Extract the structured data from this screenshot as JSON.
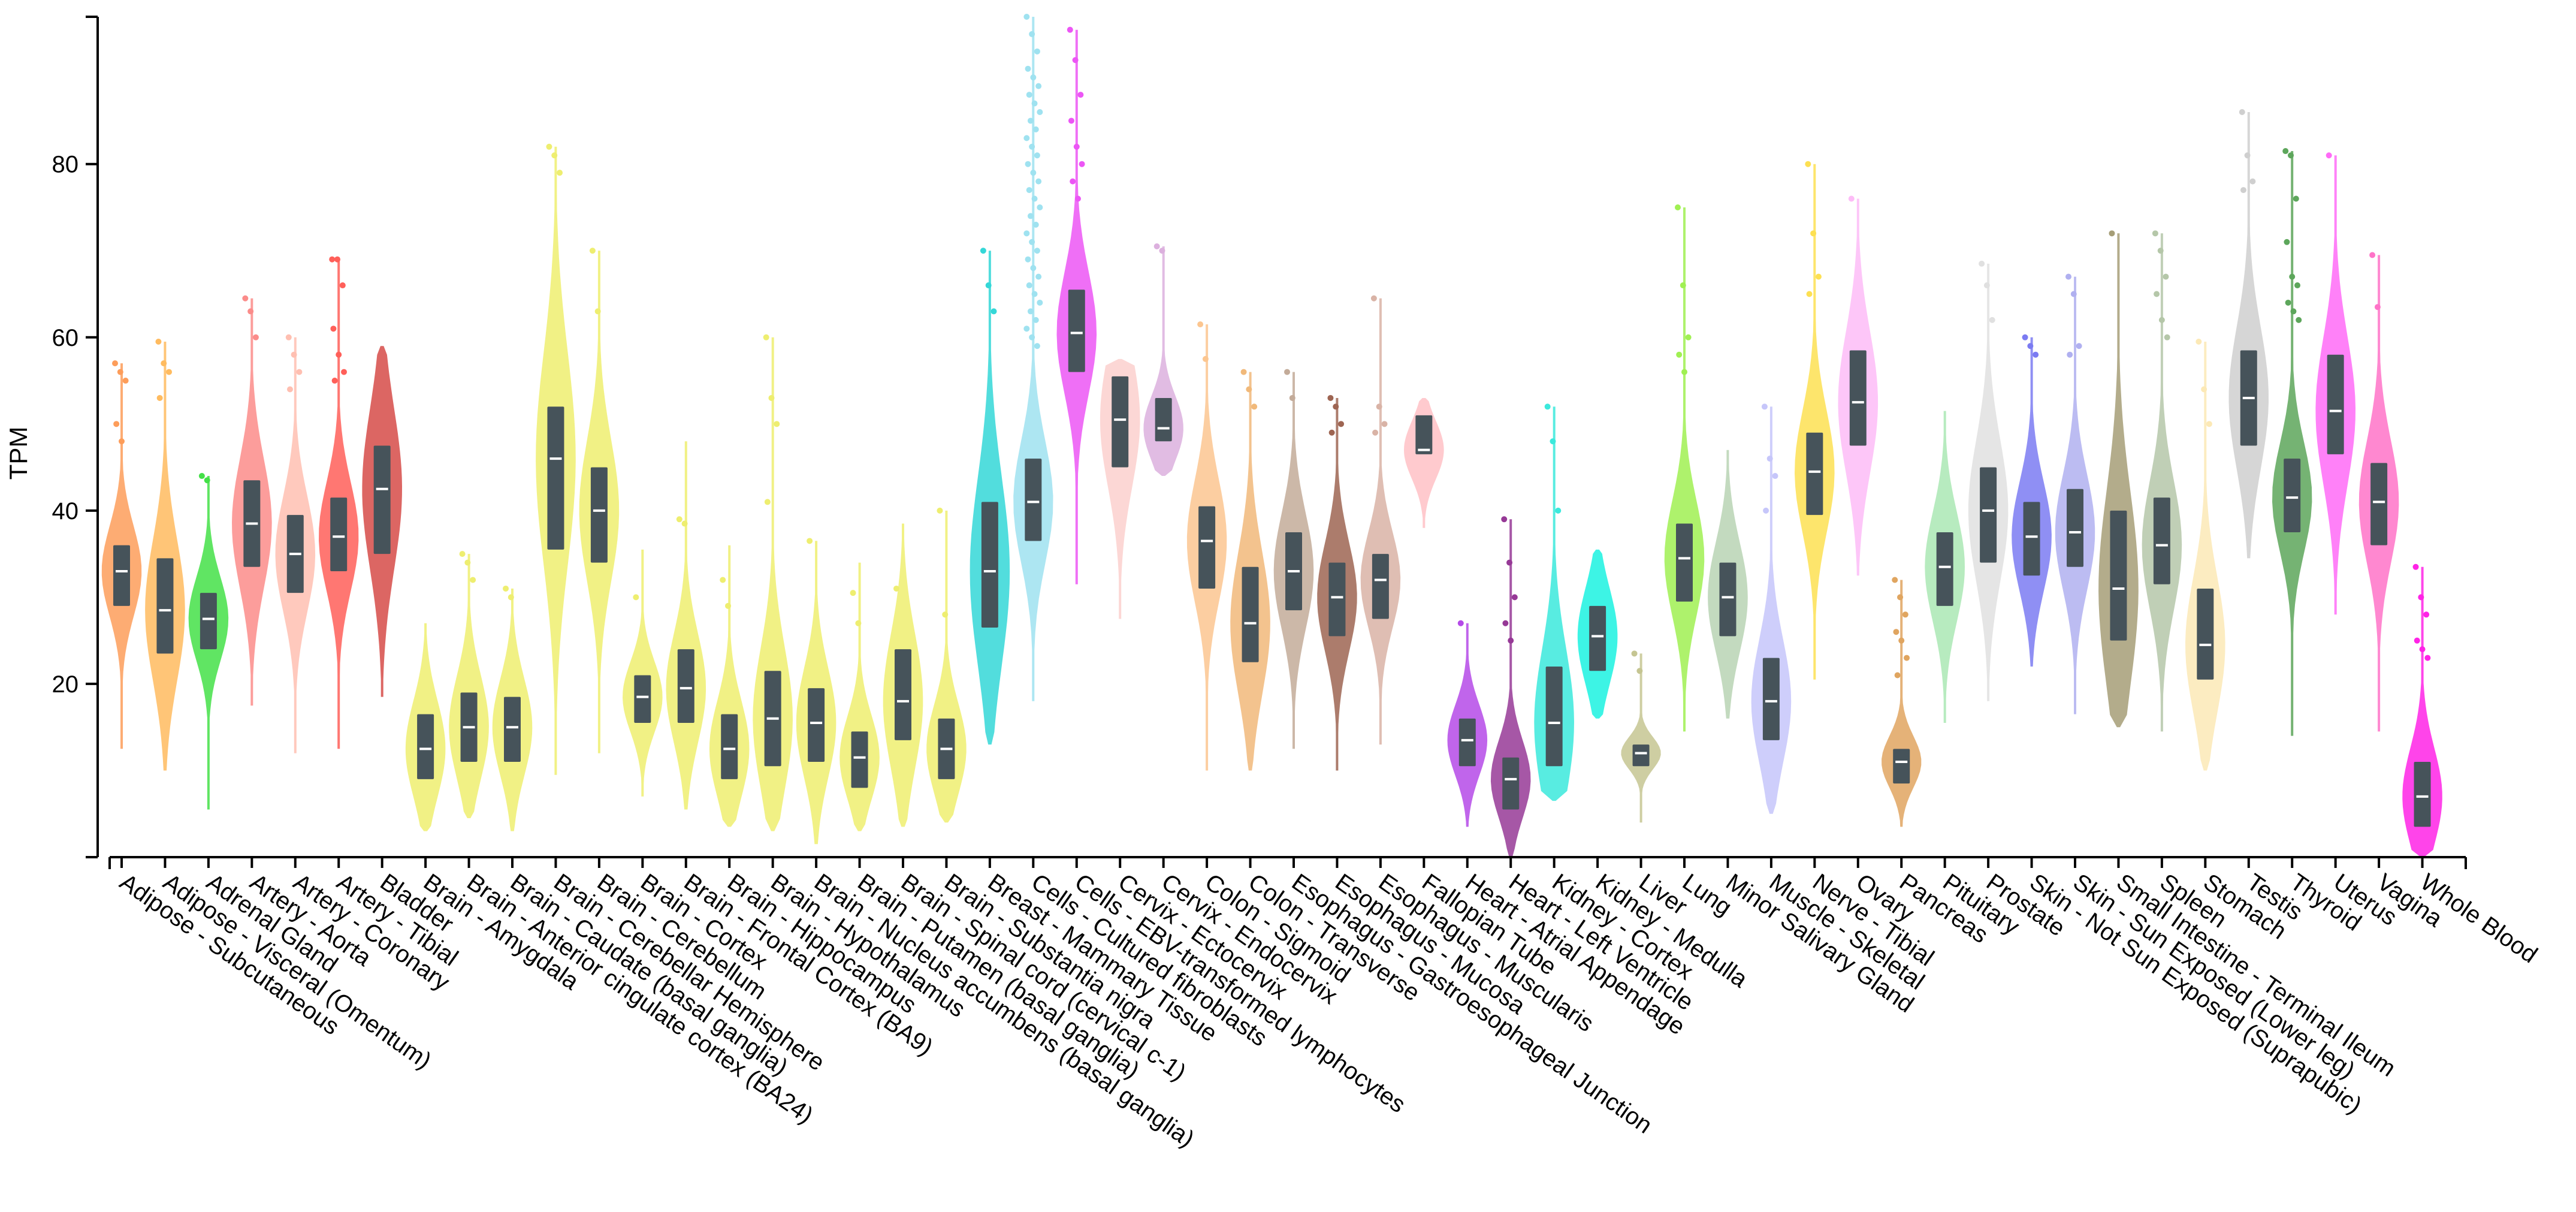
{
  "chart_data": {
    "type": "violin",
    "title": "",
    "xlabel": "",
    "ylabel": "TPM",
    "ylim": [
      0,
      97
    ],
    "yticks": [
      20,
      40,
      60,
      80
    ],
    "colors": [
      "#fd9d5a",
      "#ffbb5f",
      "#44e048",
      "#fb8c8a",
      "#ffbfb1",
      "#ff5f59",
      "#d64b48",
      "#eeee70",
      "#eeee70",
      "#eeee70",
      "#eeee70",
      "#eeee70",
      "#eeee70",
      "#eeee70",
      "#eeee70",
      "#eeee70",
      "#eeee70",
      "#eeee70",
      "#eeee70",
      "#eeee70",
      "#34d7d7",
      "#9fe2f0",
      "#ec56f5",
      "#fcd0ce",
      "#dcb0de",
      "#fcc690",
      "#f1b97a",
      "#c3ab99",
      "#9e6552",
      "#d9b3a6",
      "#ffc1c5",
      "#b54ae8",
      "#963996",
      "#3be9dc",
      "#1bf2e0",
      "#c5c592",
      "#a0f052",
      "#b8d3b4",
      "#c6c6fa",
      "#fde052",
      "#fdbcf7",
      "#e0a560",
      "#aae8b4",
      "#e0e0e0",
      "#7b7bf2",
      "#b0b0f0",
      "#a69e77",
      "#b5c7a9",
      "#fce9b6",
      "#cfcfcf",
      "#5da65b",
      "#ff6bf7",
      "#ff73c8",
      "#ff23e6"
    ],
    "categories": [
      "Adipose - Subcutaneous",
      "Adipose - Visceral (Omentum)",
      "Adrenal Gland",
      "Artery - Aorta",
      "Artery - Coronary",
      "Artery - Tibial",
      "Bladder",
      "Brain - Amygdala",
      "Brain - Anterior cingulate cortex (BA24)",
      "Brain - Caudate (basal ganglia)",
      "Brain - Cerebellar Hemisphere",
      "Brain - Cerebellum",
      "Brain - Cortex",
      "Brain - Frontal Cortex (BA9)",
      "Brain - Hippocampus",
      "Brain - Hypothalamus",
      "Brain - Nucleus accumbens (basal ganglia)",
      "Brain - Putamen (basal ganglia)",
      "Brain - Spinal cord (cervical c-1)",
      "Brain - Substantia nigra",
      "Breast - Mammary Tissue",
      "Cells - Cultured fibroblasts",
      "Cells - EBV-transformed lymphocytes",
      "Cervix - Ectocervix",
      "Cervix - Endocervix",
      "Colon - Sigmoid",
      "Colon - Transverse",
      "Esophagus - Gastroesophageal Junction",
      "Esophagus - Mucosa",
      "Esophagus - Muscularis",
      "Fallopian Tube",
      "Heart - Atrial Appendage",
      "Heart - Left Ventricle",
      "Kidney - Cortex",
      "Kidney - Medulla",
      "Liver",
      "Lung",
      "Minor Salivary Gland",
      "Muscle - Skeletal",
      "Nerve - Tibial",
      "Ovary",
      "Pancreas",
      "Pituitary",
      "Prostate",
      "Skin - Not Sun Exposed (Suprapubic)",
      "Skin - Sun Exposed (Lower leg)",
      "Small Intestine - Terminal Ileum",
      "Spleen",
      "Stomach",
      "Testis",
      "Thyroid",
      "Uterus",
      "Vagina",
      "Whole Blood"
    ],
    "series": [
      {
        "name": "Adipose - Subcutaneous",
        "min": 12.5,
        "q1": 29,
        "median": 33,
        "q3": 36,
        "max": 57,
        "outliers": [
          57,
          56,
          55,
          50,
          48
        ]
      },
      {
        "name": "Adipose - Visceral (Omentum)",
        "min": 10,
        "q1": 23.5,
        "median": 28.5,
        "q3": 34.5,
        "max": 59.5,
        "outliers": [
          59.5,
          57,
          56,
          53
        ]
      },
      {
        "name": "Adrenal Gland",
        "min": 5.5,
        "q1": 24,
        "median": 27.5,
        "q3": 30.5,
        "max": 44,
        "outliers": [
          44,
          43.5
        ]
      },
      {
        "name": "Artery - Aorta",
        "min": 17.5,
        "q1": 33.5,
        "median": 38.5,
        "q3": 43.5,
        "max": 64.5,
        "outliers": [
          64.5,
          63,
          60
        ]
      },
      {
        "name": "Artery - Coronary",
        "min": 12,
        "q1": 30.5,
        "median": 35,
        "q3": 39.5,
        "max": 60,
        "outliers": [
          60,
          58,
          56,
          54
        ]
      },
      {
        "name": "Artery - Tibial",
        "min": 12.5,
        "q1": 33,
        "median": 37,
        "q3": 41.5,
        "max": 69,
        "outliers": [
          69,
          69,
          66,
          61,
          58,
          56,
          55
        ]
      },
      {
        "name": "Bladder",
        "min": 18.5,
        "q1": 35,
        "median": 42.5,
        "q3": 47.5,
        "max": 59,
        "outliers": []
      },
      {
        "name": "Brain - Amygdala",
        "min": 3,
        "q1": 9,
        "median": 12.5,
        "q3": 16.5,
        "max": 27,
        "outliers": []
      },
      {
        "name": "Brain - Anterior cingulate cortex (BA24)",
        "min": 4.5,
        "q1": 11,
        "median": 15,
        "q3": 19,
        "max": 35,
        "outliers": [
          35,
          34,
          32
        ]
      },
      {
        "name": "Brain - Caudate (basal ganglia)",
        "min": 3,
        "q1": 11,
        "median": 15,
        "q3": 18.5,
        "max": 31,
        "outliers": [
          31,
          30
        ]
      },
      {
        "name": "Brain - Cerebellar Hemisphere",
        "min": 9.5,
        "q1": 35.5,
        "median": 46,
        "q3": 52,
        "max": 82,
        "outliers": [
          82,
          81,
          79
        ]
      },
      {
        "name": "Brain - Cerebellum",
        "min": 12,
        "q1": 34,
        "median": 40,
        "q3": 45,
        "max": 70,
        "outliers": [
          70,
          63
        ]
      },
      {
        "name": "Brain - Cortex",
        "min": 7,
        "q1": 15.5,
        "median": 18.5,
        "q3": 21,
        "max": 35.5,
        "outliers": [
          30
        ]
      },
      {
        "name": "Brain - Frontal Cortex (BA9)",
        "min": 5.5,
        "q1": 15.5,
        "median": 19.5,
        "q3": 24,
        "max": 48,
        "outliers": [
          39,
          38.5
        ]
      },
      {
        "name": "Brain - Hippocampus",
        "min": 3.5,
        "q1": 9,
        "median": 12.5,
        "q3": 16.5,
        "max": 36,
        "outliers": [
          32,
          29
        ]
      },
      {
        "name": "Brain - Hypothalamus",
        "min": 3,
        "q1": 10.5,
        "median": 16,
        "q3": 21.5,
        "max": 60,
        "outliers": [
          60,
          53,
          50,
          41
        ]
      },
      {
        "name": "Brain - Nucleus accumbens (basal ganglia)",
        "min": 1.5,
        "q1": 11,
        "median": 15.5,
        "q3": 19.5,
        "max": 36.5,
        "outliers": [
          36.5
        ]
      },
      {
        "name": "Brain - Putamen (basal ganglia)",
        "min": 3,
        "q1": 8,
        "median": 11.5,
        "q3": 14.5,
        "max": 34,
        "outliers": [
          30.5,
          27
        ]
      },
      {
        "name": "Brain - Spinal cord (cervical c-1)",
        "min": 3.5,
        "q1": 13.5,
        "median": 18,
        "q3": 24,
        "max": 38.5,
        "outliers": [
          31
        ]
      },
      {
        "name": "Brain - Substantia nigra",
        "min": 4,
        "q1": 9,
        "median": 12.5,
        "q3": 16,
        "max": 40,
        "outliers": [
          40,
          28
        ]
      },
      {
        "name": "Breast - Mammary Tissue",
        "min": 13,
        "q1": 26.5,
        "median": 33,
        "q3": 41,
        "max": 70,
        "outliers": [
          70,
          66,
          63
        ]
      },
      {
        "name": "Cells - Cultured fibroblasts",
        "min": 18,
        "q1": 36.5,
        "median": 41,
        "q3": 46,
        "max": 97,
        "outliers": [
          97,
          95,
          93,
          91,
          90,
          89,
          88,
          87,
          86,
          85,
          84,
          83,
          82,
          81,
          80,
          79,
          78,
          77,
          76,
          75,
          74,
          73,
          72,
          71,
          70,
          69,
          68,
          67,
          66,
          65,
          64,
          63,
          62,
          61,
          60,
          59
        ]
      },
      {
        "name": "Cells - EBV-transformed lymphocytes",
        "min": 31.5,
        "q1": 56,
        "median": 60.5,
        "q3": 65.5,
        "max": 95.5,
        "outliers": [
          95.5,
          92,
          88,
          85,
          82,
          80,
          78,
          76
        ]
      },
      {
        "name": "Cervix - Ectocervix",
        "min": 27.5,
        "q1": 45,
        "median": 50.5,
        "q3": 55.5,
        "max": 57.5,
        "outliers": []
      },
      {
        "name": "Cervix - Endocervix",
        "min": 44,
        "q1": 48,
        "median": 49.5,
        "q3": 53,
        "max": 70.5,
        "outliers": [
          70.5,
          70
        ]
      },
      {
        "name": "Colon - Sigmoid",
        "min": 10,
        "q1": 31,
        "median": 36.5,
        "q3": 40.5,
        "max": 61.5,
        "outliers": [
          61.5,
          57.5
        ]
      },
      {
        "name": "Colon - Transverse",
        "min": 10,
        "q1": 22.5,
        "median": 27,
        "q3": 33.5,
        "max": 56,
        "outliers": [
          56,
          54,
          52
        ]
      },
      {
        "name": "Esophagus - Gastroesophageal Junction",
        "min": 12.5,
        "q1": 28.5,
        "median": 33,
        "q3": 37.5,
        "max": 56,
        "outliers": [
          56,
          53
        ]
      },
      {
        "name": "Esophagus - Mucosa",
        "min": 10,
        "q1": 25.5,
        "median": 30,
        "q3": 34,
        "max": 53,
        "outliers": [
          53,
          52,
          50,
          49
        ]
      },
      {
        "name": "Esophagus - Muscularis",
        "min": 13,
        "q1": 27.5,
        "median": 32,
        "q3": 35,
        "max": 64.5,
        "outliers": [
          64.5,
          52,
          50,
          49
        ]
      },
      {
        "name": "Fallopian Tube",
        "min": 38,
        "q1": 46.5,
        "median": 47,
        "q3": 51,
        "max": 53,
        "outliers": []
      },
      {
        "name": "Heart - Atrial Appendage",
        "min": 3.5,
        "q1": 10.5,
        "median": 13.5,
        "q3": 16,
        "max": 27,
        "outliers": [
          27
        ]
      },
      {
        "name": "Heart - Left Ventricle",
        "min": 0,
        "q1": 5.5,
        "median": 9,
        "q3": 11.5,
        "max": 39,
        "outliers": [
          39,
          34,
          30,
          27,
          25
        ]
      },
      {
        "name": "Kidney - Cortex",
        "min": 6.5,
        "q1": 10.5,
        "median": 15.5,
        "q3": 22,
        "max": 52,
        "outliers": [
          52,
          48,
          40
        ]
      },
      {
        "name": "Kidney - Medulla",
        "min": 16,
        "q1": 21.5,
        "median": 25.5,
        "q3": 29,
        "max": 35.5,
        "outliers": []
      },
      {
        "name": "Liver",
        "min": 4,
        "q1": 10.5,
        "median": 12,
        "q3": 13,
        "max": 23.5,
        "outliers": [
          23.5,
          21.5
        ]
      },
      {
        "name": "Lung",
        "min": 14.5,
        "q1": 29.5,
        "median": 34.5,
        "q3": 38.5,
        "max": 75,
        "outliers": [
          75,
          66,
          60,
          58,
          56
        ]
      },
      {
        "name": "Minor Salivary Gland",
        "min": 16,
        "q1": 25.5,
        "median": 30,
        "q3": 34,
        "max": 47,
        "outliers": []
      },
      {
        "name": "Muscle - Skeletal",
        "min": 5,
        "q1": 13.5,
        "median": 18,
        "q3": 23,
        "max": 52,
        "outliers": [
          52,
          46,
          44,
          40
        ]
      },
      {
        "name": "Nerve - Tibial",
        "min": 20.5,
        "q1": 39.5,
        "median": 44.5,
        "q3": 49,
        "max": 80,
        "outliers": [
          80,
          72,
          67,
          65
        ]
      },
      {
        "name": "Ovary",
        "min": 32.5,
        "q1": 47.5,
        "median": 52.5,
        "q3": 58.5,
        "max": 76,
        "outliers": [
          76
        ]
      },
      {
        "name": "Pancreas",
        "min": 3.5,
        "q1": 8.5,
        "median": 11,
        "q3": 12.5,
        "max": 32,
        "outliers": [
          32,
          30,
          28,
          26,
          25,
          23,
          21
        ]
      },
      {
        "name": "Pituitary",
        "min": 15.5,
        "q1": 29,
        "median": 33.5,
        "q3": 37.5,
        "max": 51.5,
        "outliers": []
      },
      {
        "name": "Prostate",
        "min": 18,
        "q1": 34,
        "median": 40,
        "q3": 45,
        "max": 68.5,
        "outliers": [
          68.5,
          66,
          62
        ]
      },
      {
        "name": "Skin - Not Sun Exposed (Suprapubic)",
        "min": 22,
        "q1": 32.5,
        "median": 37,
        "q3": 41,
        "max": 60,
        "outliers": [
          60,
          59,
          58
        ]
      },
      {
        "name": "Skin - Sun Exposed (Lower leg)",
        "min": 16.5,
        "q1": 33.5,
        "median": 37.5,
        "q3": 42.5,
        "max": 67,
        "outliers": [
          67,
          65,
          59,
          58
        ]
      },
      {
        "name": "Small Intestine - Terminal Ileum",
        "min": 15,
        "q1": 25,
        "median": 31,
        "q3": 40,
        "max": 72,
        "outliers": [
          72
        ]
      },
      {
        "name": "Spleen",
        "min": 14.5,
        "q1": 31.5,
        "median": 36,
        "q3": 41.5,
        "max": 72,
        "outliers": [
          72,
          70,
          67,
          65,
          62,
          60
        ]
      },
      {
        "name": "Stomach",
        "min": 10,
        "q1": 20.5,
        "median": 24.5,
        "q3": 31,
        "max": 59.5,
        "outliers": [
          59.5,
          54,
          50
        ]
      },
      {
        "name": "Testis",
        "min": 34.5,
        "q1": 47.5,
        "median": 53,
        "q3": 58.5,
        "max": 86,
        "outliers": [
          86,
          81,
          78,
          77
        ]
      },
      {
        "name": "Thyroid",
        "min": 14,
        "q1": 37.5,
        "median": 41.5,
        "q3": 46,
        "max": 81.5,
        "outliers": [
          81.5,
          81,
          76,
          71,
          67,
          66,
          64,
          63,
          62
        ]
      },
      {
        "name": "Uterus",
        "min": 28,
        "q1": 46.5,
        "median": 51.5,
        "q3": 58,
        "max": 81,
        "outliers": [
          81
        ]
      },
      {
        "name": "Vagina",
        "min": 14.5,
        "q1": 36,
        "median": 41,
        "q3": 45.5,
        "max": 69.5,
        "outliers": [
          69.5,
          63.5
        ]
      },
      {
        "name": "Whole Blood",
        "min": 0,
        "q1": 3.5,
        "median": 7,
        "q3": 11,
        "max": 33.5,
        "outliers": [
          33.5,
          30,
          28,
          25,
          24,
          23
        ]
      }
    ]
  }
}
